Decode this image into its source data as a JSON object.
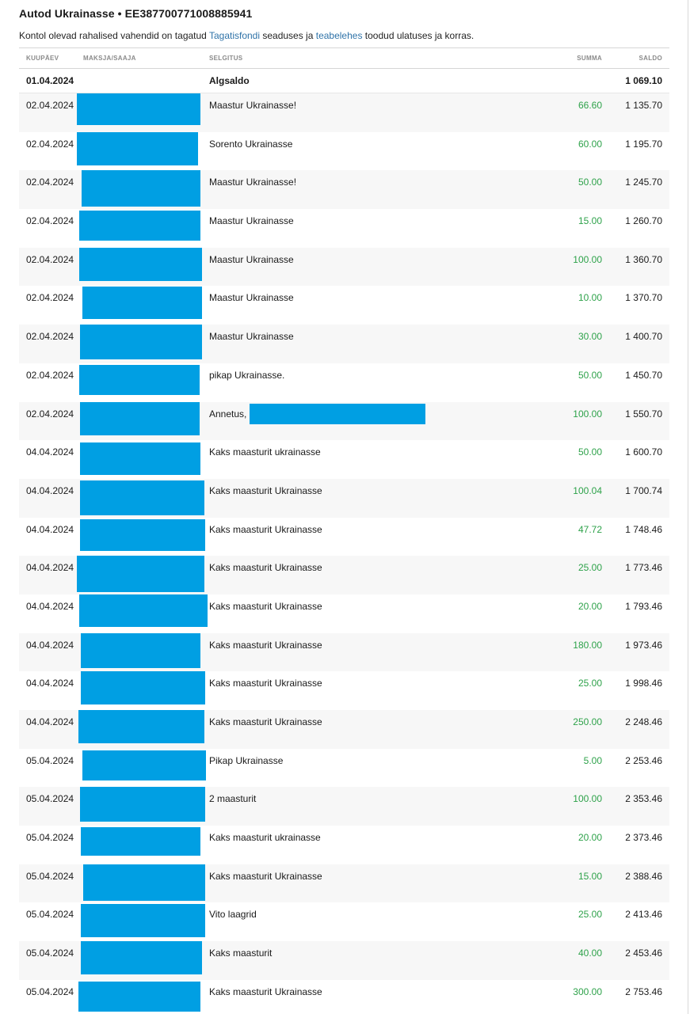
{
  "header": {
    "title": "Autod Ukrainasse • EE387700771008885941",
    "notice_pre": "Kontol olevad rahalised vahendid on tagatud ",
    "notice_link1": "Tagatisfondi",
    "notice_mid": " seaduses ja ",
    "notice_link2": "teabelehes",
    "notice_post": " toodud ulatuses ja korras."
  },
  "columns": {
    "date": "KUUPÄEV",
    "party": "MAKSJA/SAAJA",
    "description": "SELGITUS",
    "amount": "SUMMA",
    "balance": "SALDO"
  },
  "colors": {
    "amount_positive": "#2ea24a",
    "redaction": "#009fe3",
    "link": "#2f73a8"
  },
  "opening": {
    "date": "01.04.2024",
    "description": "Algsaldo",
    "balance": "1 069.10"
  },
  "transactions": [
    {
      "date": "02.04.2024",
      "description": "Maastur Ukrainasse!",
      "amount": "66.60",
      "balance": "1 135.70"
    },
    {
      "date": "02.04.2024",
      "description": "Sorento Ukrainasse",
      "amount": "60.00",
      "balance": "1 195.70"
    },
    {
      "date": "02.04.2024",
      "description": "Maastur Ukrainasse!",
      "amount": "50.00",
      "balance": "1 245.70"
    },
    {
      "date": "02.04.2024",
      "description": "Maastur Ukrainasse",
      "amount": "15.00",
      "balance": "1 260.70"
    },
    {
      "date": "02.04.2024",
      "description": "Maastur Ukrainasse",
      "amount": "100.00",
      "balance": "1 360.70"
    },
    {
      "date": "02.04.2024",
      "description": "Maastur Ukrainasse",
      "amount": "10.00",
      "balance": "1 370.70"
    },
    {
      "date": "02.04.2024",
      "description": "Maastur Ukrainasse",
      "amount": "30.00",
      "balance": "1 400.70"
    },
    {
      "date": "02.04.2024",
      "description": "pikap Ukrainasse.",
      "amount": "50.00",
      "balance": "1 450.70"
    },
    {
      "date": "02.04.2024",
      "description": "Annetus,",
      "amount": "100.00",
      "balance": "1 550.70"
    },
    {
      "date": "04.04.2024",
      "description": "Kaks maasturit ukrainasse",
      "amount": "50.00",
      "balance": "1 600.70"
    },
    {
      "date": "04.04.2024",
      "description": "Kaks maasturit Ukrainasse",
      "amount": "100.04",
      "balance": "1 700.74"
    },
    {
      "date": "04.04.2024",
      "description": "Kaks maasturit Ukrainasse",
      "amount": "47.72",
      "balance": "1 748.46"
    },
    {
      "date": "04.04.2024",
      "description": "Kaks maasturit Ukrainasse",
      "amount": "25.00",
      "balance": "1 773.46"
    },
    {
      "date": "04.04.2024",
      "description": "Kaks maasturit Ukrainasse",
      "amount": "20.00",
      "balance": "1 793.46"
    },
    {
      "date": "04.04.2024",
      "description": "Kaks maasturit Ukrainasse",
      "amount": "180.00",
      "balance": "1 973.46"
    },
    {
      "date": "04.04.2024",
      "description": "Kaks maasturit Ukrainasse",
      "amount": "25.00",
      "balance": "1 998.46"
    },
    {
      "date": "04.04.2024",
      "description": "Kaks maasturit Ukrainasse",
      "amount": "250.00",
      "balance": "2 248.46"
    },
    {
      "date": "05.04.2024",
      "description": "Pikap Ukrainasse",
      "amount": "5.00",
      "balance": "2 253.46"
    },
    {
      "date": "05.04.2024",
      "description": "2 maasturit",
      "amount": "100.00",
      "balance": "2 353.46"
    },
    {
      "date": "05.04.2024",
      "description": "Kaks maasturit ukrainasse",
      "amount": "20.00",
      "balance": "2 373.46"
    },
    {
      "date": "05.04.2024",
      "description": "Kaks maasturit Ukrainasse",
      "amount": "15.00",
      "balance": "2 388.46"
    },
    {
      "date": "05.04.2024",
      "description": "Vito laagrid",
      "amount": "25.00",
      "balance": "2 413.46"
    },
    {
      "date": "05.04.2024",
      "description": "Kaks maasturit",
      "amount": "40.00",
      "balance": "2 453.46"
    },
    {
      "date": "05.04.2024",
      "description": "Kaks maasturit Ukrainasse",
      "amount": "300.00",
      "balance": "2 753.46"
    }
  ]
}
